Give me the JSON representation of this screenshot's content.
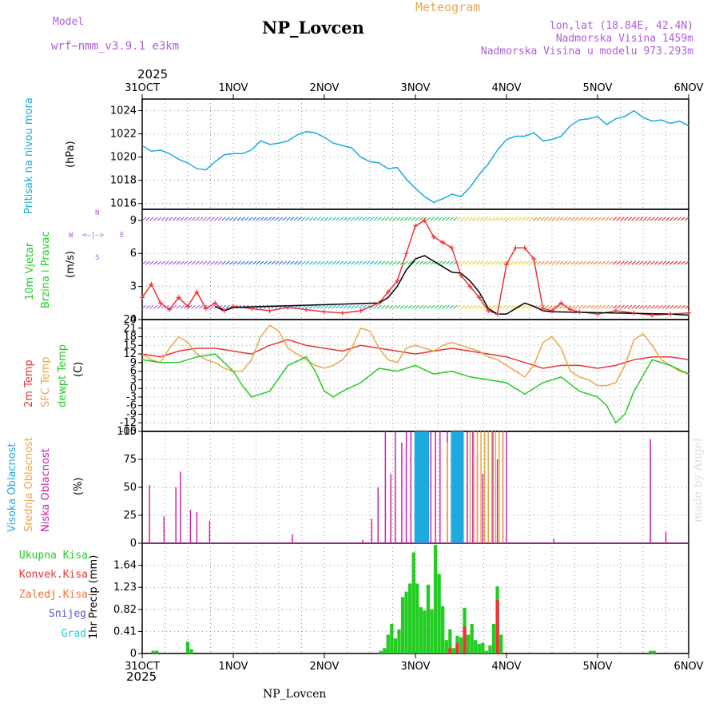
{
  "header": {
    "model_label": "Model",
    "model_value": "wrf−nmm_v3.9.1  e3km",
    "title": "NP_Lovcen",
    "meteogram": "Meteogram",
    "lonlat": "lon,lat (18.84E, 42.4N)",
    "elevation": "Nadmorska Visina 1459m",
    "model_elevation": "Nadmorska Visina u modelu 973.293m",
    "footer": "NP_Lovcen",
    "watermark": "made by Angel"
  },
  "colors": {
    "purple": "#b05cd8",
    "orange": "#e8a84a",
    "cyan": "#1aaae0",
    "red": "#ee3333",
    "green": "#22cc22",
    "magenta": "#cc22aa"
  },
  "time_axis": {
    "year": "2025",
    "labels": [
      "31OCT",
      "1NOV",
      "2NOV",
      "3NOV",
      "4NOV",
      "5NOV",
      "6NOV"
    ],
    "range_days": [
      0,
      6
    ]
  },
  "chart_data": [
    {
      "type": "line",
      "panel": "pressure",
      "ylabel_name": "Pritisak na nivou mora",
      "ylabel_unit": "(hPa)",
      "ylim": [
        1015.5,
        1025
      ],
      "yticks": [
        1016,
        1018,
        1020,
        1022,
        1024
      ],
      "series": [
        {
          "name": "MSLP",
          "color": "#1aaae0",
          "x": [
            0,
            0.1,
            0.2,
            0.3,
            0.4,
            0.5,
            0.6,
            0.7,
            0.8,
            0.9,
            1.0,
            1.1,
            1.2,
            1.3,
            1.4,
            1.5,
            1.6,
            1.7,
            1.8,
            1.9,
            2.0,
            2.1,
            2.2,
            2.3,
            2.4,
            2.5,
            2.6,
            2.7,
            2.8,
            2.9,
            3.0,
            3.1,
            3.2,
            3.3,
            3.4,
            3.5,
            3.6,
            3.7,
            3.8,
            3.9,
            4.0,
            4.1,
            4.2,
            4.3,
            4.4,
            4.5,
            4.6,
            4.7,
            4.8,
            4.9,
            5.0,
            5.1,
            5.2,
            5.3,
            5.4,
            5.5,
            5.6,
            5.7,
            5.8,
            5.9,
            6.0
          ],
          "y": [
            1021.0,
            1020.5,
            1020.6,
            1020.3,
            1019.8,
            1019.5,
            1019.0,
            1018.9,
            1019.6,
            1020.2,
            1020.3,
            1020.3,
            1020.6,
            1021.4,
            1021.1,
            1021.2,
            1021.4,
            1021.9,
            1022.2,
            1022.1,
            1021.7,
            1021.2,
            1021.0,
            1020.8,
            1020.0,
            1019.6,
            1019.5,
            1019.0,
            1019.1,
            1018.1,
            1017.3,
            1016.6,
            1016.1,
            1016.4,
            1016.8,
            1016.6,
            1017.4,
            1018.5,
            1019.4,
            1020.6,
            1021.5,
            1021.8,
            1021.8,
            1022.1,
            1021.4,
            1021.5,
            1021.8,
            1022.7,
            1023.2,
            1023.3,
            1023.5,
            1022.8,
            1023.3,
            1023.5,
            1024.0,
            1023.4,
            1023.1,
            1023.2,
            1022.9,
            1023.1,
            1022.7
          ]
        }
      ]
    },
    {
      "type": "line",
      "panel": "wind",
      "ylabel_name": "10m Vjetar",
      "ylabel_name2": "Brzina i Pravac",
      "ylabel_unit": "(m/s)",
      "legend_compass": {
        "n": "N",
        "w": "W",
        "e": "E",
        "s": "S"
      },
      "ylim": [
        0,
        10
      ],
      "yticks": [
        0,
        3,
        6,
        9
      ],
      "barb_rows": [
        1,
        5,
        9
      ],
      "series": [
        {
          "name": "wind speed",
          "color": "#ee3333",
          "x": [
            0,
            0.1,
            0.2,
            0.3,
            0.4,
            0.5,
            0.6,
            0.7,
            0.8,
            0.9,
            1.0,
            1.2,
            1.4,
            1.6,
            1.8,
            2.0,
            2.2,
            2.4,
            2.6,
            2.7,
            2.8,
            2.9,
            3.0,
            3.1,
            3.2,
            3.3,
            3.4,
            3.5,
            3.6,
            3.7,
            3.8,
            3.9,
            4.0,
            4.1,
            4.2,
            4.3,
            4.4,
            4.5,
            4.6,
            4.7,
            4.8,
            5.0,
            5.2,
            5.4,
            5.6,
            5.8,
            6.0
          ],
          "y": [
            2.0,
            3.2,
            1.5,
            0.9,
            2.0,
            1.2,
            2.5,
            1.0,
            1.5,
            0.8,
            1.2,
            1.0,
            0.8,
            1.1,
            0.9,
            0.7,
            0.6,
            0.8,
            1.5,
            2.5,
            3.5,
            6.0,
            8.5,
            9.0,
            7.5,
            7.0,
            6.5,
            4.0,
            3.0,
            2.0,
            0.8,
            0.5,
            5.0,
            6.5,
            6.5,
            5.5,
            1.0,
            0.8,
            1.5,
            0.9,
            0.7,
            0.5,
            0.8,
            0.6,
            0.4,
            0.5,
            0.6
          ]
        },
        {
          "name": "wind speed (black)",
          "color": "#000000",
          "x": [
            0.8,
            0.9,
            1.0,
            2.6,
            2.7,
            2.8,
            2.9,
            3.0,
            3.1,
            3.2,
            3.3,
            3.4,
            3.5,
            3.6,
            3.7,
            3.8,
            3.9,
            4.0,
            4.1,
            4.2,
            4.3,
            4.4,
            4.5,
            5.8,
            6.0
          ],
          "y": [
            1.2,
            0.8,
            1.1,
            1.5,
            2.0,
            3.0,
            4.5,
            5.5,
            5.8,
            5.3,
            4.8,
            4.3,
            4.2,
            3.5,
            2.5,
            1.0,
            0.5,
            0.5,
            1.0,
            1.5,
            1.2,
            0.8,
            0.7,
            0.5,
            0.4
          ]
        }
      ]
    },
    {
      "type": "line",
      "panel": "temperature",
      "ylabel_name": "2m Temp",
      "ylabel_name2": "SFC Temp",
      "ylabel_name3": "dewpt Temp",
      "ylabel_unit": "(C)",
      "ylim": [
        -15,
        24
      ],
      "yticks": [
        -15,
        -12,
        -9,
        -6,
        -3,
        0,
        3,
        6,
        9,
        12,
        15,
        18,
        21,
        24
      ],
      "series": [
        {
          "name": "2m Temp",
          "color": "#ee3333",
          "x": [
            0,
            0.2,
            0.4,
            0.6,
            0.8,
            1.0,
            1.2,
            1.4,
            1.6,
            1.8,
            2.0,
            2.2,
            2.4,
            2.6,
            2.8,
            3.0,
            3.2,
            3.4,
            3.6,
            3.8,
            4.0,
            4.2,
            4.4,
            4.6,
            4.8,
            5.0,
            5.2,
            5.4,
            5.6,
            5.8,
            6.0
          ],
          "y": [
            12,
            11,
            13,
            14,
            14,
            13,
            12,
            15,
            17,
            15,
            14,
            13,
            15,
            14,
            13,
            12,
            13,
            14,
            13,
            12,
            11,
            9,
            7,
            8,
            8,
            7,
            8,
            10,
            11,
            11,
            10
          ]
        },
        {
          "name": "SFC Temp",
          "color": "#e8a84a",
          "x": [
            0,
            0.1,
            0.2,
            0.3,
            0.4,
            0.5,
            0.6,
            0.7,
            0.8,
            0.9,
            1.0,
            1.1,
            1.2,
            1.3,
            1.4,
            1.5,
            1.6,
            1.7,
            1.8,
            1.9,
            2.0,
            2.1,
            2.2,
            2.3,
            2.4,
            2.5,
            2.6,
            2.7,
            2.8,
            2.9,
            3.0,
            3.1,
            3.2,
            3.3,
            3.4,
            3.5,
            3.6,
            3.7,
            3.8,
            3.9,
            4.0,
            4.1,
            4.2,
            4.3,
            4.4,
            4.5,
            4.6,
            4.7,
            4.8,
            4.9,
            5.0,
            5.1,
            5.2,
            5.3,
            5.4,
            5.5,
            5.6,
            5.7,
            5.8,
            5.9,
            6.0
          ],
          "y": [
            12,
            10,
            9,
            14,
            18,
            16,
            12,
            10,
            9,
            7,
            6,
            6,
            10,
            18,
            22,
            20,
            14,
            12,
            10,
            8,
            7,
            8,
            10,
            14,
            21,
            20,
            14,
            10,
            9,
            14,
            15,
            14,
            13,
            15,
            16,
            15,
            14,
            13,
            11,
            10,
            8,
            6,
            4,
            8,
            16,
            18,
            14,
            6,
            4,
            3,
            1,
            1,
            2,
            8,
            17,
            19,
            15,
            10,
            8,
            6,
            5
          ]
        },
        {
          "name": "dewpt Temp",
          "color": "#22cc22",
          "x": [
            0,
            0.2,
            0.4,
            0.6,
            0.8,
            0.9,
            1.0,
            1.1,
            1.2,
            1.4,
            1.6,
            1.8,
            1.9,
            2.0,
            2.1,
            2.2,
            2.4,
            2.6,
            2.8,
            3.0,
            3.2,
            3.4,
            3.6,
            3.8,
            4.0,
            4.2,
            4.4,
            4.6,
            4.8,
            5.0,
            5.1,
            5.2,
            5.3,
            5.4,
            5.6,
            5.8,
            6.0
          ],
          "y": [
            10,
            9,
            9,
            11,
            12,
            9,
            6,
            1,
            -3,
            -1,
            8,
            11,
            6,
            -1,
            -3,
            -1,
            2,
            7,
            6,
            8,
            5,
            6,
            4,
            3,
            2,
            -2,
            2,
            4,
            -1,
            -3,
            -6,
            -12,
            -9,
            -1,
            10,
            8,
            5
          ]
        }
      ]
    },
    {
      "type": "bar",
      "panel": "cloud",
      "ylabel_name": "Visoka Oblacnost",
      "ylabel_name2": "Srednja Oblacnost",
      "ylabel_name3": "Niska Oblacnost",
      "ylabel_unit": "(%)",
      "ylim": [
        0,
        100
      ],
      "yticks": [
        0,
        25,
        50,
        75,
        100
      ],
      "series": [
        {
          "name": "Niska Oblacnost",
          "color": "#cc22aa",
          "x": [
            0.08,
            0.24,
            0.37,
            0.42,
            0.53,
            0.6,
            0.74,
            1.65,
            2.42,
            2.52,
            2.59,
            2.67,
            2.73,
            2.78,
            2.85,
            2.9,
            2.95,
            3.0,
            3.17,
            3.22,
            3.27,
            3.35,
            3.42,
            3.5,
            3.57,
            3.63,
            3.68,
            3.74,
            3.8,
            3.85,
            3.9,
            3.96,
            4.0,
            4.52,
            5.58,
            5.75
          ],
          "y": [
            52,
            24,
            50,
            64,
            30,
            28,
            20,
            8,
            3,
            22,
            50,
            100,
            62,
            100,
            90,
            100,
            100,
            100,
            100,
            100,
            100,
            100,
            100,
            100,
            100,
            100,
            80,
            62,
            48,
            100,
            75,
            100,
            100,
            4,
            93,
            10
          ]
        },
        {
          "name": "Srednja Oblacnost",
          "color": "#e8a84a",
          "x": [
            3.6,
            3.64,
            3.68,
            3.72,
            3.76,
            3.8,
            3.84,
            3.88,
            3.92,
            3.96,
            3.35,
            3.42
          ],
          "y": [
            100,
            100,
            100,
            100,
            100,
            100,
            100,
            100,
            100,
            100,
            90,
            80
          ]
        },
        {
          "name": "Visoka Oblacnost",
          "color": "#1aaae0",
          "x": [
            3.0,
            3.02,
            3.04,
            3.06,
            3.08,
            3.1,
            3.12,
            3.14,
            3.4,
            3.42,
            3.44,
            3.46,
            3.48,
            3.5,
            3.52
          ],
          "y": [
            100,
            100,
            100,
            100,
            100,
            100,
            100,
            100,
            100,
            100,
            100,
            100,
            100,
            100,
            100
          ]
        }
      ]
    },
    {
      "type": "bar",
      "panel": "precip",
      "legend": [
        "Ukupna Kisa",
        "Konvek.Kisa",
        "Zaledj.Kisa",
        "Snijeg",
        "Grad"
      ],
      "legend_colors": [
        "#22cc22",
        "#ee3333",
        "#f07030",
        "#5555dd",
        "#22cccc"
      ],
      "ylabel_name": "1hr Precip (mm)",
      "ylim": [
        0,
        2.05
      ],
      "yticks": [
        0,
        0.41,
        0.82,
        1.23,
        1.64
      ],
      "series": [
        {
          "name": "Ukupna Kisa",
          "color": "#22cc22",
          "x": [
            0.12,
            0.16,
            0.5,
            0.54,
            2.62,
            2.66,
            2.7,
            2.74,
            2.78,
            2.82,
            2.86,
            2.9,
            2.94,
            2.98,
            3.02,
            3.06,
            3.1,
            3.14,
            3.18,
            3.22,
            3.26,
            3.3,
            3.34,
            3.38,
            3.42,
            3.46,
            3.5,
            3.54,
            3.58,
            3.62,
            3.66,
            3.7,
            3.74,
            3.78,
            3.82,
            3.86,
            3.9,
            3.94,
            5.58,
            5.62
          ],
          "y": [
            0.05,
            0.05,
            0.22,
            0.08,
            0.05,
            0.1,
            0.35,
            0.55,
            0.28,
            0.45,
            1.05,
            1.15,
            1.3,
            1.88,
            1.3,
            0.86,
            0.8,
            1.28,
            0.82,
            2.02,
            1.48,
            0.88,
            0.25,
            0.45,
            0.1,
            0.33,
            0.3,
            0.85,
            0.35,
            0.55,
            0.25,
            0.18,
            0.2,
            0.05,
            0.15,
            0.55,
            1.25,
            0.35,
            0.05,
            0.05
          ]
        },
        {
          "name": "Konvek.Kisa",
          "color": "#ee3333",
          "x": [
            3.38,
            3.46,
            3.54,
            3.9
          ],
          "y": [
            0.1,
            0.2,
            0.5,
            1.0
          ]
        }
      ]
    }
  ]
}
